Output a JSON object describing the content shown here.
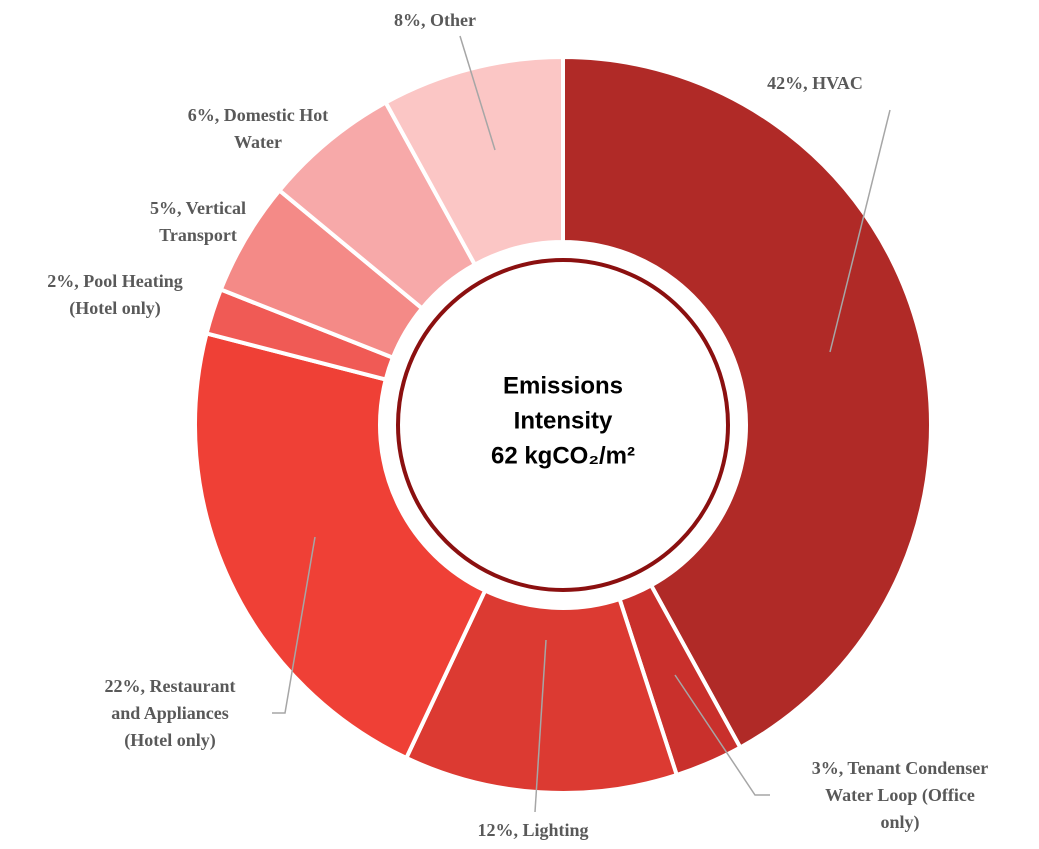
{
  "chart_data": {
    "type": "donut",
    "values": [
      42,
      3,
      12,
      22,
      2,
      5,
      6,
      8
    ],
    "value_labels": [
      [
        "42%, HVAC"
      ],
      [
        "3%, Tenant Condenser",
        "Water Loop (Office",
        "only)"
      ],
      [
        "12%, Lighting"
      ],
      [
        "22%, Restaurant",
        "and Appliances",
        "(Hotel only)"
      ],
      [
        "2%, Pool Heating",
        "(Hotel only)"
      ],
      [
        "5%, Vertical",
        "Transport"
      ],
      [
        "6%, Domestic Hot",
        "Water"
      ],
      [
        "8%, Other"
      ]
    ],
    "colors": [
      "#b02a27",
      "#c9302c",
      "#dc3a32",
      "#ef4036",
      "#f05a55",
      "#f48a87",
      "#f7a9a9",
      "#fbc6c5"
    ],
    "center_text": [
      "Emissions",
      "Intensity",
      "62 kgCO₂/m²"
    ]
  }
}
